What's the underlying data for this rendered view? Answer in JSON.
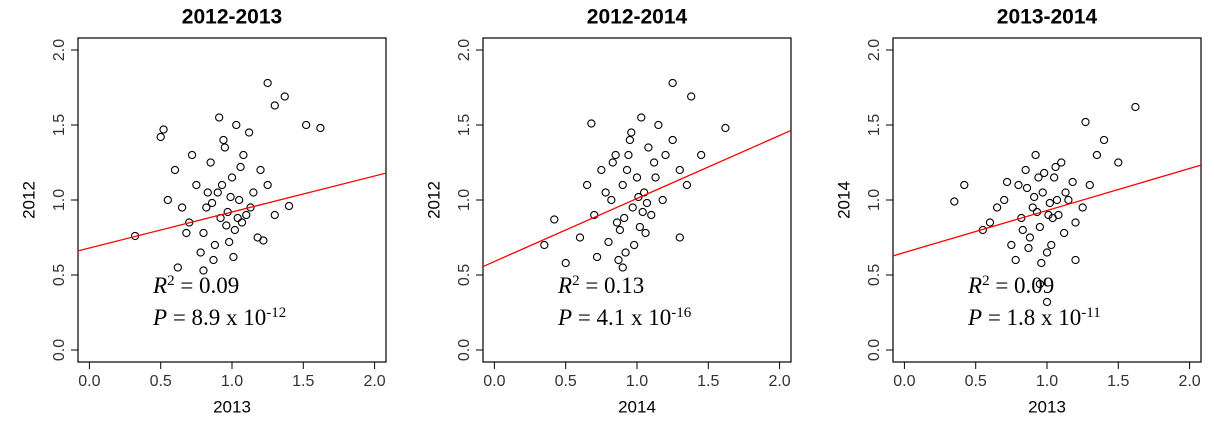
{
  "chart_data": [
    {
      "type": "scatter",
      "title": "2012-2013",
      "xlabel": "2013",
      "ylabel": "2012",
      "color": "#000000",
      "xlim": [
        -0.08,
        2.08
      ],
      "ylim": [
        -0.08,
        2.08
      ],
      "xticks": [
        {
          "value": 0,
          "label": "0.0"
        },
        0.5,
        {
          "value": 1,
          "label": "1.0"
        },
        1.5,
        {
          "value": 2,
          "label": "2.0"
        }
      ],
      "yticks": [
        {
          "value": 0,
          "label": "0.0"
        },
        0.5,
        {
          "value": 1,
          "label": "1.0"
        },
        1.5,
        {
          "value": 2,
          "label": "2.0"
        }
      ],
      "x": [
        0.32,
        0.5,
        0.52,
        1.25,
        1.37,
        1.52,
        1.62,
        1.3,
        0.62,
        0.8,
        1.22,
        1.4,
        0.55,
        0.6,
        0.7,
        0.75,
        0.8,
        0.82,
        0.85,
        0.88,
        0.9,
        0.92,
        0.95,
        0.97,
        1.0,
        1.02,
        1.05,
        1.08,
        1.1,
        1.12,
        1.15,
        1.18,
        1.2,
        0.78,
        0.86,
        0.93,
        0.98,
        1.03,
        1.07,
        0.65,
        0.72,
        0.83,
        0.91,
        0.96,
        1.01,
        1.06,
        1.13,
        1.25,
        1.3,
        0.68,
        0.87,
        0.94,
        0.99,
        1.04
      ],
      "y": [
        0.76,
        1.42,
        1.47,
        1.78,
        1.69,
        1.5,
        1.48,
        1.63,
        0.55,
        0.53,
        0.73,
        0.96,
        1.0,
        1.2,
        0.85,
        1.1,
        0.78,
        0.95,
        1.25,
        0.7,
        1.05,
        0.88,
        1.35,
        0.92,
        1.15,
        0.8,
        1.0,
        1.3,
        0.9,
        1.45,
        1.05,
        0.75,
        1.2,
        0.65,
        0.98,
        1.1,
        0.72,
        1.5,
        0.85,
        0.95,
        1.3,
        1.05,
        1.55,
        0.83,
        0.62,
        1.22,
        0.95,
        1.1,
        0.9,
        0.78,
        0.6,
        1.4,
        1.02,
        0.88
      ],
      "regression": {
        "intercept": 0.68,
        "slope": 0.24,
        "color": "#ff0000"
      },
      "annotations": [
        [
          {
            "text": "R",
            "style": "italic"
          },
          {
            "text": "2",
            "style": "sup"
          },
          {
            "text": " = 0.09",
            "style": "normal"
          }
        ],
        [
          {
            "text": "P",
            "style": "italic"
          },
          {
            "text": " = 8.9 x 10",
            "style": "normal"
          },
          {
            "text": "-12",
            "style": "sup"
          }
        ]
      ]
    },
    {
      "type": "scatter",
      "title": "2012-2014",
      "xlabel": "2014",
      "ylabel": "2012",
      "color": "#000000",
      "xlim": [
        -0.08,
        2.08
      ],
      "ylim": [
        -0.08,
        2.08
      ],
      "xticks": [
        {
          "value": 0,
          "label": "0.0"
        },
        0.5,
        {
          "value": 1,
          "label": "1.0"
        },
        1.5,
        {
          "value": 2,
          "label": "2.0"
        }
      ],
      "yticks": [
        {
          "value": 0,
          "label": "0.0"
        },
        0.5,
        {
          "value": 1,
          "label": "1.0"
        },
        1.5,
        {
          "value": 2,
          "label": "2.0"
        }
      ],
      "x": [
        0.35,
        0.42,
        0.5,
        0.68,
        1.25,
        1.38,
        1.62,
        1.45,
        1.3,
        0.9,
        0.6,
        0.7,
        0.75,
        0.8,
        0.82,
        0.85,
        0.88,
        0.9,
        0.92,
        0.95,
        0.97,
        1.0,
        1.02,
        1.05,
        1.08,
        1.1,
        1.12,
        1.15,
        1.18,
        1.2,
        0.78,
        0.86,
        0.93,
        0.98,
        1.03,
        1.07,
        0.65,
        0.72,
        0.83,
        0.91,
        0.96,
        1.01,
        1.06,
        1.13,
        1.25,
        1.3,
        1.35,
        0.87,
        0.94,
        1.04
      ],
      "y": [
        0.7,
        0.87,
        0.58,
        1.51,
        1.78,
        1.69,
        1.48,
        1.3,
        0.75,
        0.55,
        0.75,
        0.9,
        1.2,
        0.72,
        1.0,
        1.3,
        0.8,
        1.1,
        0.65,
        1.4,
        0.95,
        1.15,
        0.82,
        1.05,
        1.35,
        0.9,
        1.25,
        1.5,
        1.0,
        1.3,
        1.05,
        0.85,
        1.2,
        0.7,
        1.55,
        0.98,
        1.1,
        0.62,
        1.25,
        0.88,
        1.45,
        1.02,
        0.78,
        1.15,
        1.4,
        1.2,
        1.1,
        0.6,
        1.3,
        0.92
      ],
      "regression": {
        "intercept": 0.59,
        "slope": 0.42,
        "color": "#ff0000"
      },
      "annotations": [
        [
          {
            "text": "R",
            "style": "italic"
          },
          {
            "text": "2",
            "style": "sup"
          },
          {
            "text": " = 0.13",
            "style": "normal"
          }
        ],
        [
          {
            "text": "P",
            "style": "italic"
          },
          {
            "text": " = 4.1 x 10",
            "style": "normal"
          },
          {
            "text": "-16",
            "style": "sup"
          }
        ]
      ]
    },
    {
      "type": "scatter",
      "title": "2013-2014",
      "xlabel": "2013",
      "ylabel": "2014",
      "color": "#000000",
      "xlim": [
        -0.08,
        2.08
      ],
      "ylim": [
        -0.08,
        2.08
      ],
      "xticks": [
        {
          "value": 0,
          "label": "0.0"
        },
        0.5,
        {
          "value": 1,
          "label": "1.0"
        },
        1.5,
        {
          "value": 2,
          "label": "2.0"
        }
      ],
      "yticks": [
        {
          "value": 0,
          "label": "0.0"
        },
        0.5,
        {
          "value": 1,
          "label": "1.0"
        },
        1.5,
        {
          "value": 2,
          "label": "2.0"
        }
      ],
      "x": [
        0.35,
        0.42,
        1.62,
        1.27,
        1.0,
        0.95,
        1.4,
        1.5,
        0.55,
        1.2,
        0.6,
        0.7,
        0.75,
        0.8,
        0.82,
        0.85,
        0.88,
        0.9,
        0.92,
        0.95,
        0.97,
        1.0,
        1.02,
        1.05,
        1.08,
        1.1,
        1.12,
        1.15,
        1.18,
        1.2,
        0.78,
        0.86,
        0.93,
        0.98,
        1.03,
        1.07,
        0.65,
        0.72,
        0.83,
        0.91,
        0.96,
        1.01,
        1.06,
        1.13,
        1.25,
        1.3,
        1.35,
        0.87,
        0.94,
        1.04
      ],
      "y": [
        0.99,
        1.1,
        1.62,
        1.52,
        0.32,
        0.44,
        1.4,
        1.25,
        0.8,
        0.6,
        0.85,
        1.0,
        0.7,
        1.1,
        0.88,
        1.2,
        0.75,
        0.95,
        1.3,
        0.82,
        1.05,
        0.65,
        0.98,
        1.15,
        0.9,
        1.25,
        0.78,
        1.0,
        1.12,
        0.85,
        0.6,
        1.08,
        0.92,
        1.18,
        0.7,
        1.0,
        0.95,
        1.12,
        0.8,
        1.02,
        0.58,
        0.9,
        1.22,
        1.05,
        0.95,
        1.1,
        1.3,
        0.68,
        1.15,
        0.88
      ],
      "regression": {
        "intercept": 0.65,
        "slope": 0.28,
        "color": "#ff0000"
      },
      "annotations": [
        [
          {
            "text": "R",
            "style": "italic"
          },
          {
            "text": "2",
            "style": "sup"
          },
          {
            "text": " = 0.09",
            "style": "normal"
          }
        ],
        [
          {
            "text": "P",
            "style": "italic"
          },
          {
            "text": " = 1.8 x 10",
            "style": "normal"
          },
          {
            "text": "-11",
            "style": "sup"
          }
        ]
      ]
    }
  ]
}
